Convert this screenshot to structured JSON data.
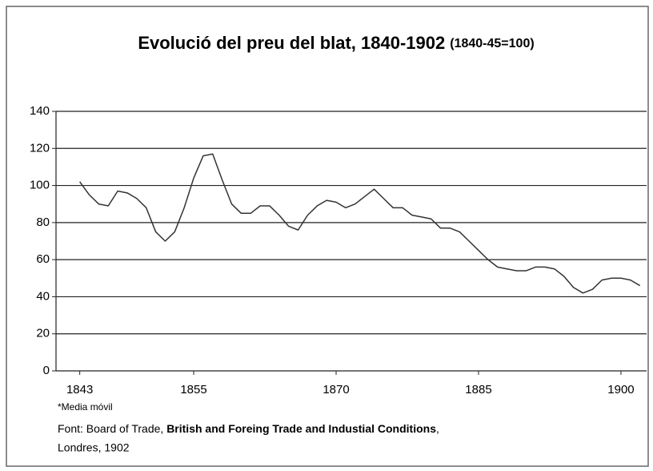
{
  "chart_data": {
    "type": "line",
    "title": "Evolució del preu del blat, 1840-1902",
    "subtitle": "(1840-45=100)",
    "x": [
      1843,
      1844,
      1845,
      1846,
      1847,
      1848,
      1849,
      1850,
      1851,
      1852,
      1853,
      1854,
      1855,
      1856,
      1857,
      1858,
      1859,
      1860,
      1861,
      1862,
      1863,
      1864,
      1865,
      1866,
      1867,
      1868,
      1869,
      1870,
      1871,
      1872,
      1873,
      1874,
      1875,
      1876,
      1877,
      1878,
      1879,
      1880,
      1881,
      1882,
      1883,
      1884,
      1885,
      1886,
      1887,
      1888,
      1889,
      1890,
      1891,
      1892,
      1893,
      1894,
      1895,
      1896,
      1897,
      1898,
      1899,
      1900,
      1901,
      1902
    ],
    "series": [
      {
        "name": "Preu del blat",
        "color": "#333333",
        "values": [
          102,
          95,
          90,
          89,
          97,
          96,
          93,
          88,
          75,
          70,
          75,
          88,
          104,
          116,
          117,
          103,
          90,
          85,
          85,
          89,
          89,
          84,
          78,
          76,
          84,
          89,
          92,
          91,
          88,
          90,
          94,
          98,
          93,
          88,
          88,
          84,
          83,
          82,
          77,
          77,
          75,
          70,
          65,
          60,
          56,
          55,
          54,
          54,
          56,
          56,
          55,
          51,
          45,
          42,
          44,
          49,
          50,
          50,
          49,
          46
        ]
      }
    ],
    "xlim": [
      1840.5,
      1902.7
    ],
    "xticks": [
      1843,
      1855,
      1870,
      1885,
      1900
    ],
    "ylim": [
      0,
      140
    ],
    "yticks": [
      0,
      20,
      40,
      60,
      80,
      100,
      120,
      140
    ],
    "grid": true,
    "note": "*Media móvil",
    "source_prefix": "Font: Board of Trade, ",
    "source_title": "British and Foreing Trade and Industial Conditions",
    "source_suffix": ",",
    "source_line2": "Londres, 1902"
  }
}
